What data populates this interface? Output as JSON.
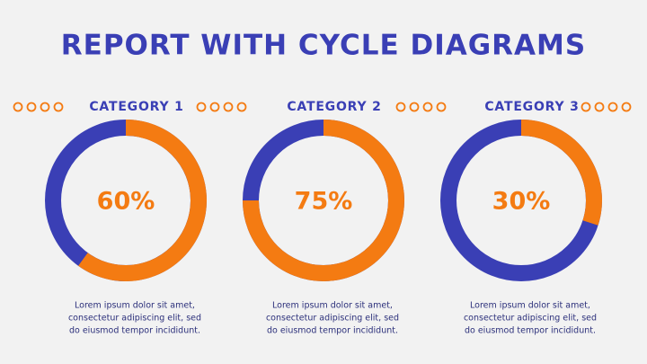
{
  "title": "REPORT WITH CYCLE DIAGRAMS",
  "chart_data": [
    {
      "type": "donut",
      "title": "CATEGORY 1",
      "values": [
        60
      ],
      "value_labels": [
        "60%"
      ],
      "color": "#f47b12",
      "track_color": "#3a3fb5",
      "caption": [
        "Lorem ipsum dolor sit amet,",
        "consectetur adipiscing elit, sed",
        "do eiusmod tempor incididunt."
      ]
    },
    {
      "type": "donut",
      "title": "CATEGORY 2",
      "values": [
        75
      ],
      "value_labels": [
        "75%"
      ],
      "color": "#f47b12",
      "track_color": "#3a3fb5",
      "caption": [
        "Lorem ipsum dolor sit amet,",
        "consectetur adipiscing elit, sed",
        "do eiusmod tempor incididunt."
      ]
    },
    {
      "type": "donut",
      "title": "CATEGORY 3",
      "values": [
        30
      ],
      "value_labels": [
        "30%"
      ],
      "color": "#f47b12",
      "track_color": "#3a3fb5",
      "caption": [
        "Lorem ipsum dolor sit amet,",
        "consectetur adipiscing elit, sed",
        "do eiusmod tempor incididunt."
      ]
    }
  ]
}
